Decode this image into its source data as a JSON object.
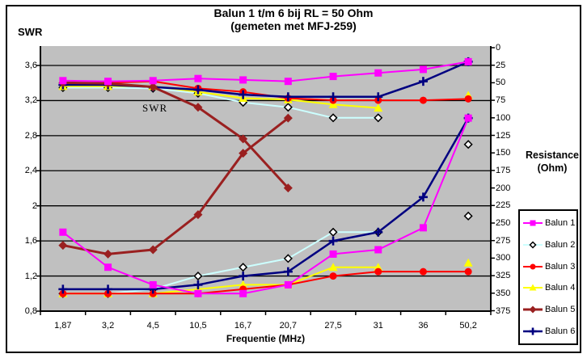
{
  "title": {
    "line1": "Balun 1 t/m 6 bij RL = 50 Ohm",
    "line2": "(gemeten met MFJ-259)"
  },
  "annotation": {
    "text": "SWR"
  },
  "axes": {
    "left": {
      "title": "SWR",
      "tick_labels": [
        "0,8",
        "1,2",
        "1,6",
        "2",
        "2,4",
        "2,8",
        "3,2",
        "3,6"
      ]
    },
    "right": {
      "title_line1": "Resistance",
      "title_line2": "(Ohm)",
      "tick_labels": [
        "0",
        "25",
        "50",
        "75",
        "100",
        "125",
        "150",
        "175",
        "200",
        "225",
        "250",
        "275",
        "300",
        "325",
        "350",
        "375"
      ]
    },
    "x": {
      "title": "Frequentie (MHz)",
      "tick_labels": [
        "1,87",
        "3,2",
        "4,5",
        "10,5",
        "16,7",
        "20,7",
        "27,5",
        "31",
        "36",
        "50,2"
      ]
    }
  },
  "colors": {
    "plot_background": "#C0C0C0",
    "gridline": "#000000",
    "frame": "#000000"
  },
  "chart_data": {
    "type": "line",
    "title": "Balun 1 t/m 6 bij RL = 50 Ohm (gemeten met MFJ-259)",
    "xlabel": "Frequentie (MHz)",
    "x_categories": [
      1.87,
      3.2,
      4.5,
      10.5,
      16.7,
      20.7,
      27.5,
      31,
      36,
      50.2
    ],
    "left_axis": {
      "label": "SWR",
      "range": [
        0.8,
        3.6
      ],
      "tick_step": 0.4
    },
    "right_axis": {
      "label": "Resistance (Ohm)",
      "range": [
        0,
        375
      ],
      "tick_step": 25,
      "inverted": true
    },
    "grid": "horizontal",
    "legend_position": "right",
    "annotation": {
      "text": "SWR",
      "near": "Balun 5 curves"
    },
    "series": [
      {
        "name": "Balun 1",
        "color": "#FF00FF",
        "marker": "square",
        "swr": [
          1.7,
          1.3,
          1.1,
          1.0,
          1.0,
          1.1,
          1.45,
          1.5,
          1.75,
          3.0
        ],
        "resistance": [
          47,
          48,
          47,
          44,
          46,
          48,
          41,
          36,
          31,
          20
        ]
      },
      {
        "name": "Balun 2",
        "color": "#CCFFFF",
        "marker": "open-diamond",
        "marker_fill": "#FFFFFF",
        "marker_stroke": "#000000",
        "swr": [
          1.0,
          1.0,
          1.05,
          1.2,
          1.3,
          1.4,
          1.7,
          1.7,
          null,
          2.7
        ],
        "resistance": [
          57,
          57,
          58,
          65,
          78,
          85,
          100,
          100,
          null,
          240
        ]
      },
      {
        "name": "Balun 3",
        "color": "#FF0000",
        "marker": "circle",
        "swr": [
          1.0,
          1.0,
          1.0,
          1.0,
          1.05,
          1.1,
          1.2,
          1.25,
          1.25,
          1.25
        ],
        "resistance": [
          50,
          50,
          48,
          58,
          63,
          72,
          75,
          75,
          75,
          73
        ]
      },
      {
        "name": "Balun 4",
        "color": "#FFFF00",
        "marker": "triangle",
        "swr": [
          1.0,
          1.0,
          1.0,
          1.05,
          1.1,
          1.1,
          1.3,
          1.3,
          null,
          1.35
        ],
        "resistance": [
          55,
          55,
          55,
          63,
          72,
          74,
          81,
          86,
          null,
          68
        ]
      },
      {
        "name": "Balun 5",
        "color": "#9A2020",
        "marker": "diamond",
        "line_width": 3,
        "swr": [
          1.55,
          1.45,
          1.5,
          1.9,
          2.6,
          3.0,
          null,
          null,
          null,
          null
        ],
        "resistance": [
          50,
          51,
          56,
          85,
          130,
          200,
          null,
          null,
          null,
          null
        ]
      },
      {
        "name": "Balun 6",
        "color": "#000080",
        "marker": "plus",
        "line_width": 2.5,
        "swr": [
          1.05,
          1.05,
          1.05,
          1.1,
          1.2,
          1.25,
          1.6,
          1.7,
          2.1,
          3.0
        ],
        "resistance": [
          53,
          53,
          56,
          60,
          67,
          70,
          70,
          70,
          48,
          20
        ]
      }
    ]
  }
}
